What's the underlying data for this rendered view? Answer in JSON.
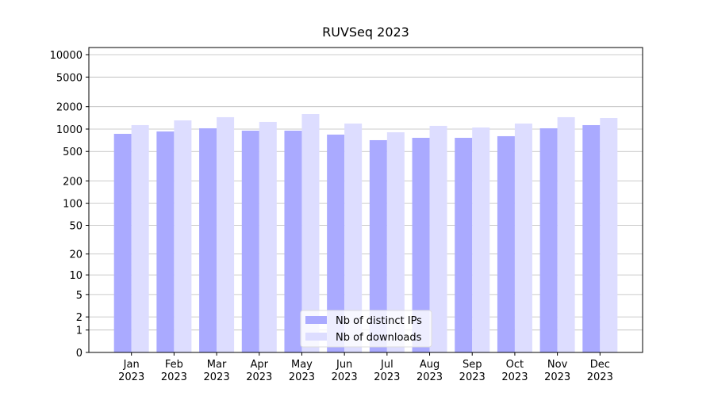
{
  "chart_data": {
    "type": "bar",
    "title": "RUVSeq 2023",
    "categories": [
      "Jan\n2023",
      "Feb\n2023",
      "Mar\n2023",
      "Apr\n2023",
      "May\n2023",
      "Jun\n2023",
      "Jul\n2023",
      "Aug\n2023",
      "Sep\n2023",
      "Oct\n2023",
      "Nov\n2023",
      "Dec\n2023"
    ],
    "series": [
      {
        "name": "Nb of distinct IPs",
        "color": "#aaaaff",
        "values": [
          863,
          929,
          1025,
          952,
          952,
          843,
          709,
          763,
          763,
          802,
          1025,
          1130
        ]
      },
      {
        "name": "Nb of downloads",
        "color": "#ddddff",
        "values": [
          1130,
          1309,
          1444,
          1247,
          1592,
          1186,
          906,
          1104,
          1050,
          1186,
          1444,
          1408
        ]
      }
    ],
    "yscale": "log1p",
    "ylim": [
      0,
      12470
    ],
    "yticks": [
      0,
      1,
      2,
      5,
      10,
      20,
      50,
      100,
      200,
      500,
      1000,
      2000,
      5000,
      10000
    ],
    "grid": true,
    "legend": "lower center"
  }
}
